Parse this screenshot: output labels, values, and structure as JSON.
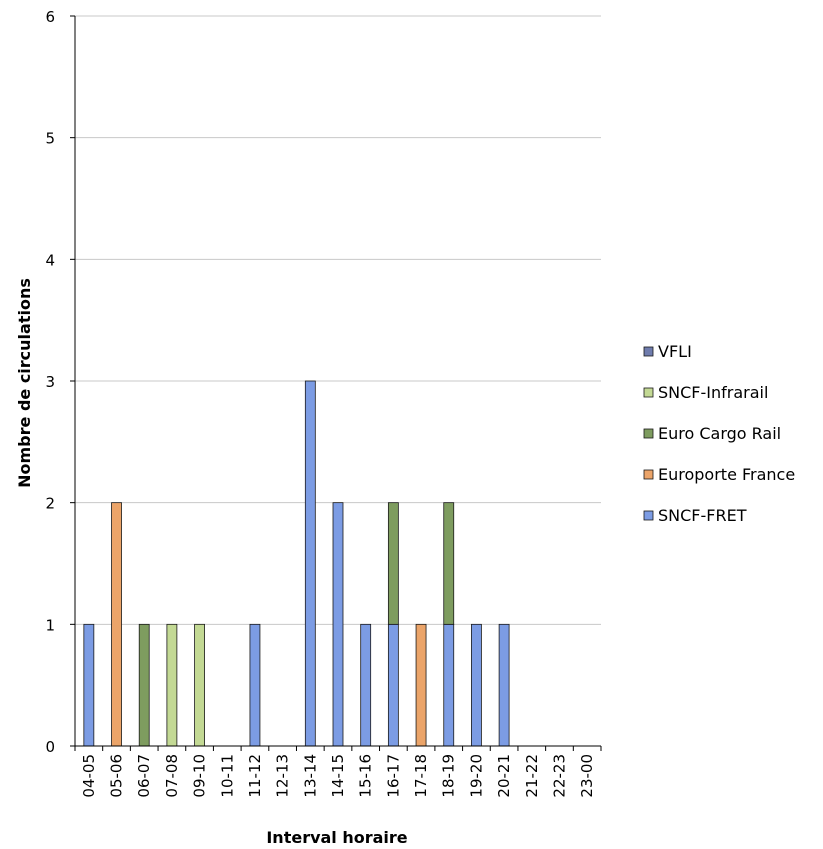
{
  "chart_data": {
    "type": "bar",
    "stacked": true,
    "title": "",
    "xlabel": "Interval horaire",
    "ylabel": "Nombre de circulations",
    "ylim": [
      0,
      6
    ],
    "yticks": [
      "0",
      "1",
      "2",
      "3",
      "4",
      "5",
      "6"
    ],
    "grid": true,
    "legend_position": "right",
    "categories": [
      "04-05",
      "05-06",
      "06-07",
      "07-08",
      "09-10",
      "10-11",
      "11-12",
      "12-13",
      "13-14",
      "14-15",
      "15-16",
      "16-17",
      "17-18",
      "18-19",
      "19-20",
      "20-21",
      "21-22",
      "22-23",
      "23-00"
    ],
    "series": [
      {
        "name": "SNCF-FRET",
        "color": "#7c9ce4",
        "values": [
          1,
          0,
          0,
          0,
          0,
          0,
          1,
          0,
          3,
          2,
          1,
          1,
          0,
          1,
          1,
          1,
          0,
          0,
          0
        ]
      },
      {
        "name": "Europorte France",
        "color": "#eba469",
        "values": [
          0,
          2,
          0,
          0,
          0,
          0,
          0,
          0,
          0,
          0,
          0,
          0,
          1,
          0,
          0,
          0,
          0,
          0,
          0
        ]
      },
      {
        "name": "Euro Cargo Rail",
        "color": "#7e9c5f",
        "values": [
          0,
          0,
          1,
          0,
          0,
          0,
          0,
          0,
          0,
          0,
          0,
          1,
          0,
          1,
          0,
          0,
          0,
          0,
          0
        ]
      },
      {
        "name": "SNCF-Infrarail",
        "color": "#c3d994",
        "values": [
          0,
          0,
          0,
          1,
          1,
          0,
          0,
          0,
          0,
          0,
          0,
          0,
          0,
          0,
          0,
          0,
          0,
          0,
          0
        ]
      },
      {
        "name": "VFLI",
        "color": "#6f7cad",
        "values": [
          0,
          0,
          0,
          0,
          0,
          0,
          0,
          0,
          0,
          0,
          0,
          0,
          0,
          0,
          0,
          0,
          0,
          0,
          0
        ]
      }
    ],
    "legend_order": [
      "VFLI",
      "SNCF-Infrarail",
      "Euro Cargo Rail",
      "Europorte France",
      "SNCF-FRET"
    ]
  }
}
